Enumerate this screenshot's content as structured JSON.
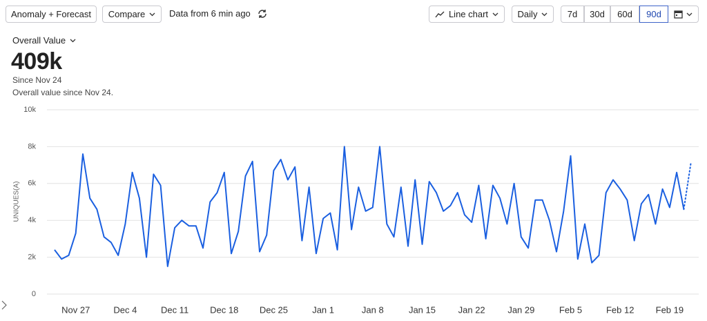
{
  "toolbar": {
    "mode": "Anomaly + Forecast",
    "compare": "Compare",
    "freshness": "Data from 6 min ago",
    "chart_type": "Line chart",
    "interval": "Daily",
    "ranges": [
      "7d",
      "30d",
      "60d",
      "90d"
    ],
    "selected": "90d"
  },
  "summary": {
    "metric": "Overall Value",
    "value": "409k",
    "since": "Since Nov 24",
    "note": "Overall value since Nov 24."
  },
  "chart_data": {
    "type": "line",
    "y_label": "UNIQUES(A)",
    "categories": [
      null,
      null,
      null,
      "Nov 27",
      null,
      null,
      null,
      null,
      null,
      null,
      "Dec 4",
      null,
      null,
      null,
      null,
      null,
      null,
      "Dec 11",
      null,
      null,
      null,
      null,
      null,
      null,
      "Dec 18",
      null,
      null,
      null,
      null,
      null,
      null,
      "Dec 25",
      null,
      null,
      null,
      null,
      null,
      null,
      "Jan 1",
      null,
      null,
      null,
      null,
      null,
      null,
      "Jan 8",
      null,
      null,
      null,
      null,
      null,
      null,
      "Jan 15",
      null,
      null,
      null,
      null,
      null,
      null,
      "Jan 22",
      null,
      null,
      null,
      null,
      null,
      null,
      "Jan 29",
      null,
      null,
      null,
      null,
      null,
      null,
      "Feb 5",
      null,
      null,
      null,
      null,
      null,
      null,
      "Feb 12",
      null,
      null,
      null,
      null,
      null,
      null,
      "Feb 19",
      null,
      null,
      null
    ],
    "series": [
      {
        "color": "#1a5fe0",
        "dashed": false,
        "values": [
          2400,
          1900,
          2100,
          3300,
          7600,
          5200,
          4600,
          3100,
          2800,
          2100,
          3800,
          6600,
          5200,
          2000,
          6500,
          5900,
          1500,
          3600,
          4000,
          3700,
          3700,
          2500,
          5000,
          5500,
          6600,
          2200,
          3400,
          6400,
          7200,
          2300,
          3200,
          6700,
          7300,
          6200,
          6900,
          2900,
          5800,
          2200,
          4100,
          4400,
          2400,
          8000,
          3500,
          5800,
          4500,
          4700,
          8000,
          3800,
          3100,
          5800,
          2600,
          6200,
          2700,
          6100,
          5500,
          4500,
          4800,
          5500,
          4300,
          3900,
          5900,
          3000,
          5900,
          5200,
          3800,
          6000,
          3100,
          2500,
          5100,
          5100,
          4000,
          2300,
          4500,
          7500,
          1900,
          3800,
          1700,
          2100,
          5500,
          6200,
          5700,
          5100,
          2900,
          4900,
          5400,
          3800,
          5700,
          4700,
          6600,
          4600,
          null
        ]
      },
      {
        "color": "#1a5fe0",
        "dashed": true,
        "values": [
          null,
          null,
          null,
          null,
          null,
          null,
          null,
          null,
          null,
          null,
          null,
          null,
          null,
          null,
          null,
          null,
          null,
          null,
          null,
          null,
          null,
          null,
          null,
          null,
          null,
          null,
          null,
          null,
          null,
          null,
          null,
          null,
          null,
          null,
          null,
          null,
          null,
          null,
          null,
          null,
          null,
          null,
          null,
          null,
          null,
          null,
          null,
          null,
          null,
          null,
          null,
          null,
          null,
          null,
          null,
          null,
          null,
          null,
          null,
          null,
          null,
          null,
          null,
          null,
          null,
          null,
          null,
          null,
          null,
          null,
          null,
          null,
          null,
          null,
          null,
          null,
          null,
          null,
          null,
          null,
          null,
          null,
          null,
          null,
          null,
          null,
          null,
          null,
          null,
          4600,
          7100
        ]
      }
    ],
    "ylim": [
      0,
      10000
    ],
    "yticks": [
      0,
      {
        "value": 2000,
        "label": "2k"
      },
      {
        "value": 4000,
        "label": "4k"
      },
      {
        "value": 6000,
        "label": "6k"
      },
      {
        "value": 8000,
        "label": "8k"
      },
      {
        "value": 10000,
        "label": "10k"
      }
    ],
    "grid": true
  }
}
